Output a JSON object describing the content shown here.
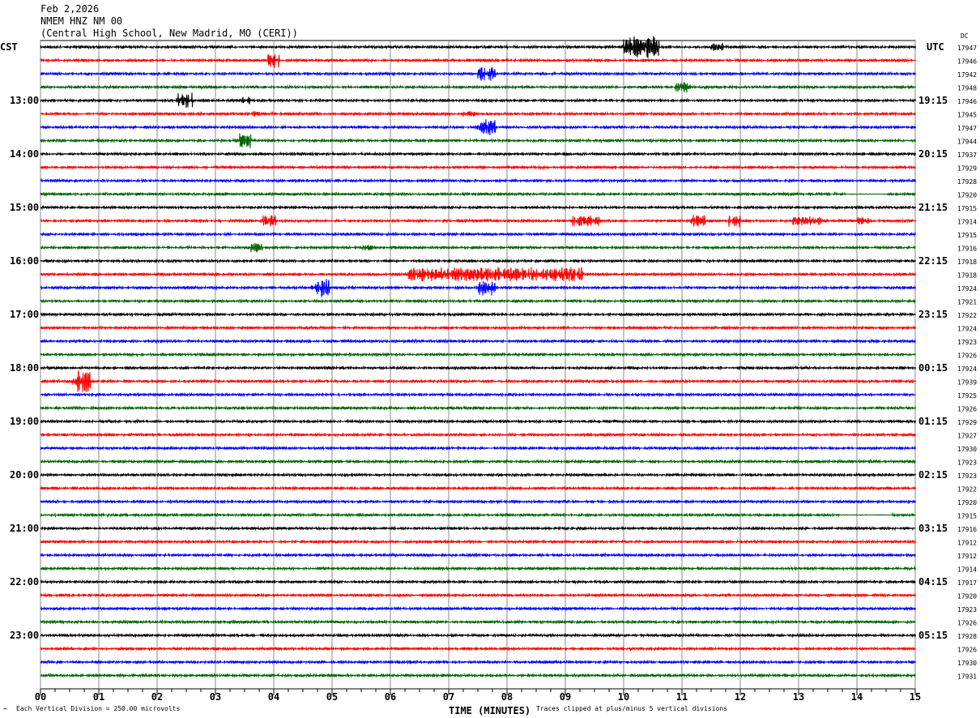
{
  "header": {
    "date": "Feb 2,2026",
    "station": "NMEM HNZ NM 00",
    "location": "(Central High School, New Madrid, MO (CERI))"
  },
  "left_tz": "CST",
  "right_tz": "UTC",
  "dc_label": "DC",
  "footer": {
    "scale": "Each Vertical Division =  250.00 microvolts",
    "xlabel": "TIME (MINUTES)",
    "clip": "Traces clipped at plus/minus 5 vertical divisions"
  },
  "chart_data": {
    "type": "line",
    "xlabel": "TIME (MINUTES)",
    "xlim": [
      0,
      15
    ],
    "x_ticks": [
      "00",
      "01",
      "02",
      "03",
      "04",
      "05",
      "06",
      "07",
      "08",
      "09",
      "10",
      "11",
      "12",
      "13",
      "14",
      "15"
    ],
    "trace_colors": [
      "#000000",
      "#ff0000",
      "#0000ff",
      "#006400"
    ],
    "left_hour_labels": [
      "CST",
      "13:00",
      "14:00",
      "15:00",
      "16:00",
      "17:00",
      "18:00",
      "19:00",
      "20:00",
      "21:00",
      "22:00",
      "23:00"
    ],
    "right_hour_labels": [
      "UTC",
      "19:15",
      "20:15",
      "21:15",
      "22:15",
      "23:15",
      "00:15",
      "01:15",
      "02:15",
      "03:15",
      "04:15",
      "05:15"
    ],
    "dc_offsets": [
      17947,
      17946,
      17942,
      17948,
      17946,
      17945,
      17947,
      17944,
      17937,
      17929,
      17928,
      17920,
      17915,
      17914,
      17915,
      17916,
      17918,
      17918,
      17924,
      17921,
      17922,
      17924,
      17923,
      17926,
      17924,
      17939,
      17925,
      17926,
      17929,
      17927,
      17930,
      17923,
      17923,
      17922,
      17920,
      17915,
      17916,
      17912,
      17912,
      17914,
      17917,
      17920,
      17923,
      17926,
      17928,
      17926,
      17930,
      17931
    ],
    "events": [
      {
        "trace": 0,
        "start": 10.0,
        "end": 10.5,
        "amp": 1.4
      },
      {
        "trace": 0,
        "start": 11.5,
        "end": 11.6,
        "amp": 0.5
      },
      {
        "trace": 1,
        "start": 3.9,
        "end": 4.0,
        "amp": 1.0
      },
      {
        "trace": 2,
        "start": 7.5,
        "end": 7.7,
        "amp": 0.9
      },
      {
        "trace": 3,
        "start": 10.9,
        "end": 11.05,
        "amp": 0.8
      },
      {
        "trace": 4,
        "start": 2.35,
        "end": 2.5,
        "amp": 1.0
      },
      {
        "trace": 4,
        "start": 3.45,
        "end": 3.5,
        "amp": 0.5
      },
      {
        "trace": 5,
        "start": 3.55,
        "end": 3.65,
        "amp": 0.4
      },
      {
        "trace": 5,
        "start": 7.25,
        "end": 7.35,
        "amp": 0.4
      },
      {
        "trace": 6,
        "start": 7.5,
        "end": 7.7,
        "amp": 1.0
      },
      {
        "trace": 7,
        "start": 3.4,
        "end": 3.5,
        "amp": 1.0
      },
      {
        "trace": 13,
        "start": 3.8,
        "end": 3.95,
        "amp": 0.8
      },
      {
        "trace": 13,
        "start": 9.1,
        "end": 9.5,
        "amp": 0.7
      },
      {
        "trace": 13,
        "start": 11.15,
        "end": 11.3,
        "amp": 0.8
      },
      {
        "trace": 13,
        "start": 11.8,
        "end": 11.9,
        "amp": 0.8
      },
      {
        "trace": 13,
        "start": 12.9,
        "end": 13.3,
        "amp": 0.6
      },
      {
        "trace": 13,
        "start": 14.0,
        "end": 14.1,
        "amp": 0.5
      },
      {
        "trace": 15,
        "start": 3.6,
        "end": 3.7,
        "amp": 0.6
      },
      {
        "trace": 15,
        "start": 5.5,
        "end": 5.6,
        "amp": 0.4
      },
      {
        "trace": 17,
        "start": 6.3,
        "end": 9.2,
        "amp": 0.9
      },
      {
        "trace": 18,
        "start": 4.7,
        "end": 4.85,
        "amp": 1.2
      },
      {
        "trace": 18,
        "start": 7.5,
        "end": 7.7,
        "amp": 1.0
      },
      {
        "trace": 25,
        "start": 0.6,
        "end": 0.75,
        "amp": 1.5
      }
    ],
    "flat_segments": [
      {
        "trace": 11,
        "start": 13.8,
        "end": 14.5
      },
      {
        "trace": 35,
        "start": 13.7,
        "end": 14.6
      }
    ]
  }
}
